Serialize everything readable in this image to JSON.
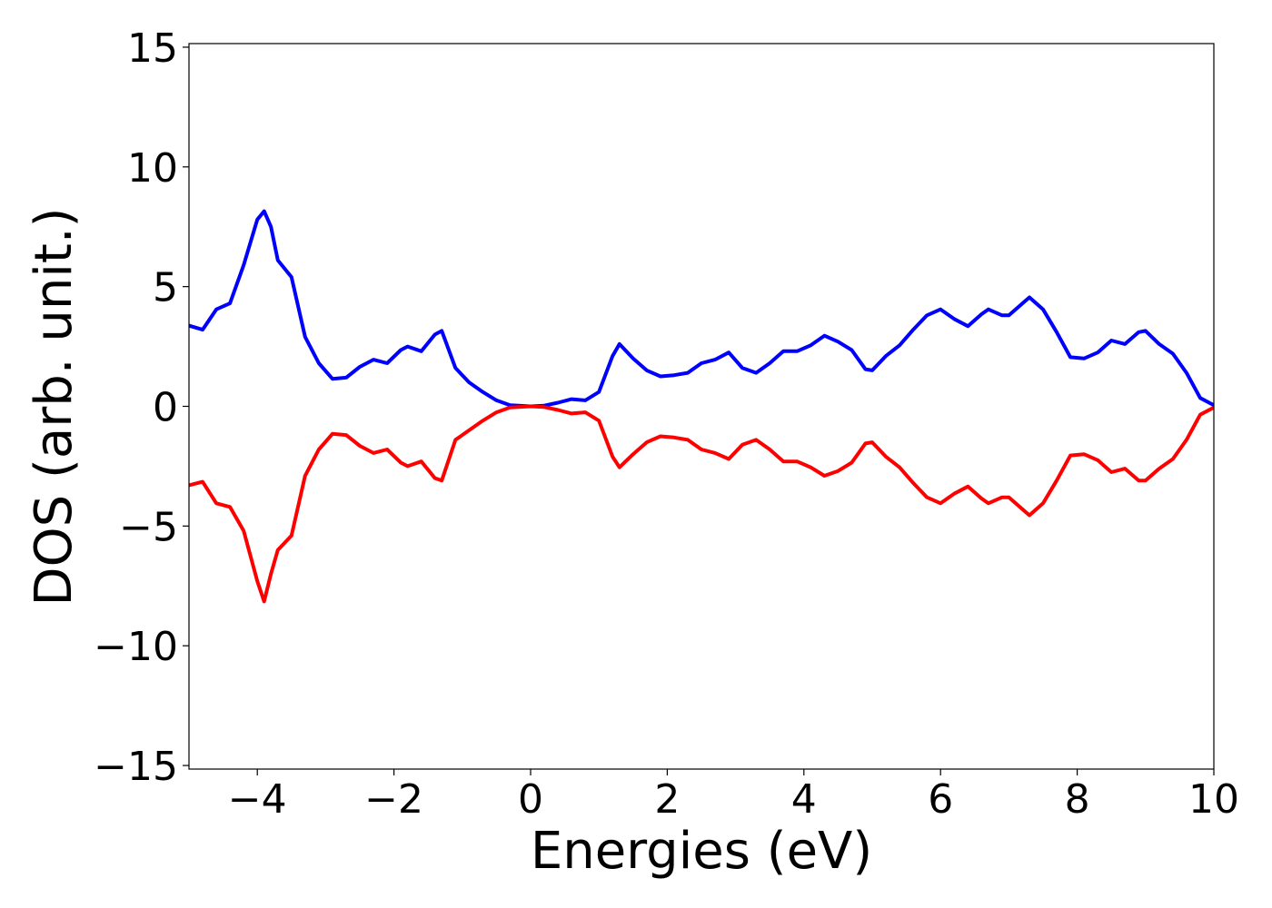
{
  "chart_data": {
    "type": "line",
    "xlabel": "Energies (eV)",
    "ylabel": "DOS (arb. unit.)",
    "x": [
      -5,
      -4.8,
      -4.6,
      -4.4,
      -4.2,
      -4.0,
      -3.9,
      -3.8,
      -3.7,
      -3.5,
      -3.3,
      -3.1,
      -2.9,
      -2.7,
      -2.5,
      -2.3,
      -2.1,
      -1.9,
      -1.8,
      -1.6,
      -1.4,
      -1.3,
      -1.1,
      -0.9,
      -0.7,
      -0.5,
      -0.3,
      0,
      0.2,
      0.4,
      0.6,
      0.8,
      1.0,
      1.2,
      1.3,
      1.5,
      1.7,
      1.9,
      2.1,
      2.3,
      2.5,
      2.7,
      2.9,
      3.1,
      3.3,
      3.5,
      3.7,
      3.9,
      4.1,
      4.3,
      4.5,
      4.7,
      4.9,
      5.0,
      5.2,
      5.4,
      5.6,
      5.8,
      6.0,
      6.2,
      6.4,
      6.6,
      6.7,
      6.9,
      7.0,
      7.2,
      7.3,
      7.5,
      7.7,
      7.9,
      8.1,
      8.3,
      8.5,
      8.7,
      8.9,
      9.0,
      9.2,
      9.4,
      9.6,
      9.8,
      10
    ],
    "series": [
      {
        "color": "#0000ff",
        "values": [
          3.37,
          3.2,
          4.05,
          4.3,
          5.9,
          7.8,
          8.15,
          7.5,
          6.1,
          5.4,
          2.9,
          1.8,
          1.15,
          1.2,
          1.65,
          1.95,
          1.8,
          2.35,
          2.5,
          2.3,
          3.0,
          3.15,
          1.6,
          1.0,
          0.6,
          0.25,
          0.05,
          0,
          0.03,
          0.15,
          0.3,
          0.25,
          0.6,
          2.1,
          2.6,
          2.0,
          1.5,
          1.25,
          1.3,
          1.4,
          1.8,
          1.95,
          2.25,
          1.6,
          1.4,
          1.8,
          2.3,
          2.3,
          2.55,
          2.95,
          2.7,
          2.35,
          1.55,
          1.5,
          2.1,
          2.55,
          3.2,
          3.8,
          4.05,
          3.65,
          3.35,
          3.85,
          4.05,
          3.8,
          3.8,
          4.3,
          4.55,
          4.05,
          3.1,
          2.05,
          2.0,
          2.25,
          2.75,
          2.6,
          3.1,
          3.15,
          2.6,
          2.2,
          1.4,
          0.35,
          0.05
        ]
      },
      {
        "color": "#ff0000",
        "values": [
          -3.3,
          -3.15,
          -4.05,
          -4.2,
          -5.2,
          -7.3,
          -8.15,
          -7.0,
          -6.0,
          -5.4,
          -2.9,
          -1.8,
          -1.15,
          -1.2,
          -1.65,
          -1.95,
          -1.8,
          -2.35,
          -2.5,
          -2.3,
          -3.0,
          -3.1,
          -1.4,
          -1.0,
          -0.6,
          -0.25,
          -0.05,
          0,
          -0.03,
          -0.15,
          -0.3,
          -0.25,
          -0.6,
          -2.1,
          -2.55,
          -2.0,
          -1.5,
          -1.25,
          -1.3,
          -1.4,
          -1.8,
          -1.95,
          -2.2,
          -1.6,
          -1.4,
          -1.8,
          -2.3,
          -2.3,
          -2.55,
          -2.9,
          -2.7,
          -2.35,
          -1.55,
          -1.5,
          -2.1,
          -2.55,
          -3.2,
          -3.8,
          -4.05,
          -3.65,
          -3.35,
          -3.85,
          -4.05,
          -3.8,
          -3.8,
          -4.3,
          -4.55,
          -4.05,
          -3.1,
          -2.05,
          -2.0,
          -2.25,
          -2.75,
          -2.6,
          -3.1,
          -3.1,
          -2.6,
          -2.2,
          -1.4,
          -0.35,
          -0.05
        ]
      }
    ],
    "xlim": [
      -5,
      10
    ],
    "xticks": [
      {
        "value": -4,
        "label": "−4"
      },
      {
        "value": -2,
        "label": "−2"
      },
      0,
      2,
      4,
      6,
      8,
      10
    ],
    "ylim": [
      -15.15,
      15.15
    ],
    "yticks": [
      {
        "value": -15,
        "label": "−15"
      },
      {
        "value": -10,
        "label": "−10"
      },
      {
        "value": -5,
        "label": "−5"
      },
      0,
      5,
      10,
      15
    ]
  }
}
